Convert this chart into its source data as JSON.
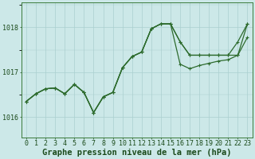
{
  "title": "Graphe pression niveau de la mer (hPa)",
  "bg_color": "#cce8e8",
  "grid_color": "#aacfcf",
  "line_color": "#2d6b2d",
  "xlim": [
    -0.5,
    23.5
  ],
  "ylim": [
    1015.55,
    1018.55
  ],
  "yticks": [
    1016,
    1017,
    1018
  ],
  "xticks": [
    0,
    1,
    2,
    3,
    4,
    5,
    6,
    7,
    8,
    9,
    10,
    11,
    12,
    13,
    14,
    15,
    16,
    17,
    18,
    19,
    20,
    21,
    22,
    23
  ],
  "series1": [
    1016.35,
    1016.52,
    1016.63,
    1016.65,
    1016.52,
    1016.73,
    1016.55,
    1016.1,
    1016.45,
    1016.55,
    1017.1,
    1017.35,
    1017.45,
    1017.97,
    1018.08,
    1018.08,
    1017.68,
    1017.38,
    1017.38,
    1017.38,
    1017.38,
    1017.38,
    1017.68,
    1018.08
  ],
  "series2": [
    1016.35,
    1016.52,
    1016.63,
    1016.65,
    1016.52,
    1016.73,
    1016.55,
    1016.1,
    1016.45,
    1016.55,
    1017.1,
    1017.35,
    1017.45,
    1017.97,
    1018.08,
    1018.08,
    1017.18,
    1017.08,
    1017.15,
    1017.2,
    1017.25,
    1017.28,
    1017.38,
    1017.78
  ],
  "series3": [
    1016.35,
    1016.52,
    1016.63,
    1016.65,
    1016.52,
    1016.73,
    1016.55,
    1016.1,
    1016.45,
    1016.55,
    1017.1,
    1017.35,
    1017.45,
    1017.97,
    1018.08,
    1018.08,
    1017.68,
    1017.38,
    1017.38,
    1017.38,
    1017.38,
    1017.38,
    1017.38,
    1018.08
  ],
  "font_size_title": 7.5,
  "font_size_ticks": 6.0,
  "marker_size": 3.0,
  "line_width": 0.9
}
